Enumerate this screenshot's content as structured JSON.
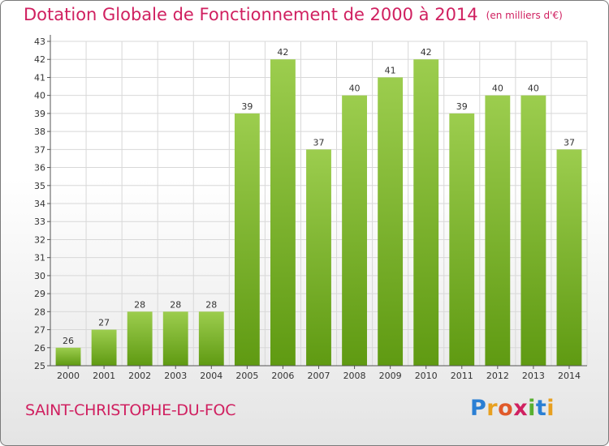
{
  "header": {
    "title": "Dotation Globale de Fonctionnement de 2000 à 2014",
    "unit": "(en milliers d'€)"
  },
  "footer": {
    "place": "SAINT-CHRISTOPHE-DU-FOC",
    "logo": "Proxiti"
  },
  "colors": {
    "accent": "#d02060",
    "bar_light": "#9ccd4e",
    "bar_dark": "#5f9a12"
  },
  "chart_data": {
    "type": "bar",
    "title": "Dotation Globale de Fonctionnement de 2000 à 2014",
    "subtitle": "(en milliers d'€)",
    "xlabel": "",
    "ylabel": "",
    "categories": [
      "2000",
      "2001",
      "2002",
      "2003",
      "2004",
      "2005",
      "2006",
      "2007",
      "2008",
      "2009",
      "2010",
      "2011",
      "2012",
      "2013",
      "2014"
    ],
    "values": [
      26,
      27,
      28,
      28,
      28,
      39,
      42,
      37,
      40,
      41,
      42,
      39,
      40,
      40,
      37
    ],
    "ylim": [
      25,
      43
    ],
    "yticks": [
      25,
      26,
      27,
      28,
      29,
      30,
      31,
      32,
      33,
      34,
      35,
      36,
      37,
      38,
      39,
      40,
      41,
      42,
      43
    ],
    "grid": true
  }
}
